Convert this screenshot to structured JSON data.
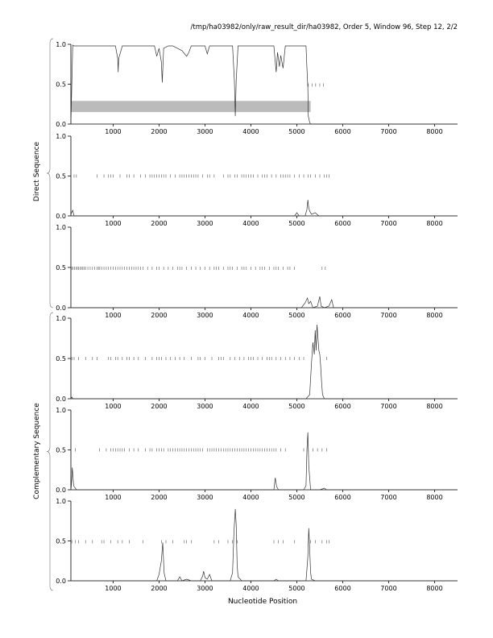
{
  "header": "/tmp/ha03982/only/raw_result_dir/ha03982, Order 5, Window 96, Step 12, 2/2",
  "xlabel": "Nucleotide Position",
  "group_labels": [
    "Direct Sequence",
    "Complementary Sequence"
  ],
  "colors": {
    "trace": "#333333",
    "tick": "#555555",
    "band": "#bbbbbb",
    "axis": "#000000"
  },
  "chart_data": [
    {
      "type": "line",
      "panel": 1,
      "xlim": [
        80,
        8500
      ],
      "ylim": [
        0,
        1
      ],
      "x_ticks": [
        1000,
        2000,
        3000,
        4000,
        5000,
        6000,
        7000,
        8000
      ],
      "y_ticks": [
        "0.0",
        "0.5",
        "1.0"
      ],
      "band": {
        "x_start": 80,
        "x_end": 5300,
        "y_low": 0.15,
        "y_high": 0.29
      },
      "series": [
        {
          "x": [
            80,
            120,
            140,
            200,
            1050,
            1100,
            1110,
            1120,
            1200,
            1900,
            1950,
            2000,
            2050,
            2070,
            2100,
            2200,
            2300,
            2500,
            2600,
            2650,
            2700,
            3000,
            3050,
            3100,
            3600,
            3640,
            3660,
            3680,
            3720,
            3800,
            4500,
            4550,
            4580,
            4620,
            4650,
            4700,
            4750,
            5150,
            5200,
            5220,
            5240,
            5250,
            5280,
            5300,
            5500,
            8500
          ],
          "y": [
            0.0,
            0.99,
            0.98,
            0.98,
            0.98,
            0.82,
            0.65,
            0.82,
            0.98,
            0.98,
            0.85,
            0.95,
            0.78,
            0.52,
            0.95,
            0.98,
            0.98,
            0.92,
            0.85,
            0.9,
            0.98,
            0.98,
            0.88,
            0.98,
            0.98,
            0.55,
            0.1,
            0.55,
            0.98,
            0.98,
            0.98,
            0.65,
            0.9,
            0.72,
            0.86,
            0.7,
            0.98,
            0.98,
            0.98,
            0.7,
            0.45,
            0.1,
            0.02,
            0.0,
            0.0,
            0.0
          ]
        }
      ],
      "tick_marks": {
        "y": 0.49,
        "x": [
          5250,
          5330,
          5410,
          5500,
          5580
        ]
      }
    },
    {
      "type": "line",
      "panel": 2,
      "xlim": [
        80,
        8500
      ],
      "ylim": [
        0,
        1
      ],
      "x_ticks": [
        1000,
        2000,
        3000,
        4000,
        5000,
        6000,
        7000,
        8000
      ],
      "y_ticks": [
        "0.0",
        "0.5",
        "1.0"
      ],
      "series": [
        {
          "x": [
            80,
            120,
            150,
            200,
            4950,
            5000,
            5050,
            5180,
            5220,
            5240,
            5260,
            5280,
            5320,
            5400,
            5480,
            5600,
            8500
          ],
          "y": [
            0.02,
            0.07,
            0.0,
            0.0,
            0.0,
            0.04,
            0.0,
            0.0,
            0.08,
            0.2,
            0.1,
            0.06,
            0.02,
            0.04,
            0.0,
            0.0,
            0.0
          ]
        }
      ],
      "tick_marks": {
        "y": 0.5,
        "x": [
          150,
          200,
          650,
          800,
          900,
          950,
          1000,
          1150,
          1300,
          1350,
          1450,
          1600,
          1700,
          1800,
          1850,
          1900,
          1950,
          2000,
          2050,
          2100,
          2150,
          2250,
          2350,
          2450,
          2500,
          2550,
          2600,
          2650,
          2700,
          2750,
          2800,
          2850,
          2950,
          3050,
          3100,
          3200,
          3400,
          3500,
          3550,
          3650,
          3700,
          3800,
          3850,
          3900,
          3950,
          4000,
          4050,
          4150,
          4250,
          4300,
          4350,
          4450,
          4550,
          4650,
          4700,
          4750,
          4800,
          4850,
          4950,
          5050,
          5150,
          5250,
          5300,
          5400,
          5500,
          5600,
          5650,
          5700
        ]
      }
    },
    {
      "type": "line",
      "panel": 3,
      "xlim": [
        80,
        8500
      ],
      "ylim": [
        0,
        1
      ],
      "x_ticks": [
        1000,
        2000,
        3000,
        4000,
        5000,
        6000,
        7000,
        8000
      ],
      "y_ticks": [
        "0.0",
        "0.5",
        "1.0"
      ],
      "series": [
        {
          "x": [
            80,
            5100,
            5180,
            5230,
            5260,
            5300,
            5350,
            5450,
            5500,
            5530,
            5600,
            5700,
            5760,
            5800,
            8500
          ],
          "y": [
            0.0,
            0.0,
            0.06,
            0.12,
            0.05,
            0.08,
            0.0,
            0.02,
            0.14,
            0.02,
            0.0,
            0.02,
            0.1,
            0.0,
            0.0
          ]
        }
      ],
      "tick_marks": {
        "y": 0.49,
        "x": [
          100,
          130,
          160,
          190,
          220,
          250,
          280,
          310,
          340,
          370,
          400,
          450,
          500,
          550,
          600,
          650,
          680,
          710,
          750,
          800,
          850,
          900,
          950,
          1000,
          1050,
          1100,
          1150,
          1200,
          1250,
          1300,
          1350,
          1400,
          1450,
          1500,
          1550,
          1600,
          1650,
          1750,
          1850,
          1950,
          2000,
          2100,
          2200,
          2300,
          2400,
          2450,
          2500,
          2600,
          2700,
          2800,
          2900,
          3000,
          3100,
          3200,
          3250,
          3300,
          3400,
          3500,
          3550,
          3600,
          3700,
          3800,
          3850,
          3900,
          4000,
          4100,
          4200,
          4250,
          4300,
          4400,
          4500,
          4550,
          4600,
          4700,
          4800,
          4850,
          4950,
          5550,
          5620
        ]
      }
    },
    {
      "type": "line",
      "panel": 4,
      "xlim": [
        80,
        8500
      ],
      "ylim": [
        0,
        1
      ],
      "x_ticks": [
        1000,
        2000,
        3000,
        4000,
        5000,
        6000,
        7000,
        8000
      ],
      "y_ticks": [
        "0.0",
        "0.5",
        "1.0"
      ],
      "series": [
        {
          "x": [
            80,
            100,
            130,
            160,
            5200,
            5280,
            5320,
            5350,
            5380,
            5400,
            5420,
            5440,
            5460,
            5480,
            5500,
            5520,
            5540,
            5560,
            5600,
            8500
          ],
          "y": [
            0.0,
            0.02,
            0.0,
            0.0,
            0.0,
            0.05,
            0.45,
            0.7,
            0.55,
            0.85,
            0.6,
            0.92,
            0.75,
            0.6,
            0.55,
            0.4,
            0.2,
            0.05,
            0.0,
            0.0
          ]
        }
      ],
      "tick_marks": {
        "y": 0.5,
        "x": [
          100,
          150,
          250,
          400,
          550,
          650,
          900,
          950,
          1050,
          1100,
          1200,
          1300,
          1350,
          1450,
          1550,
          1700,
          1850,
          1950,
          2000,
          2050,
          2150,
          2250,
          2350,
          2450,
          2550,
          2700,
          2850,
          2900,
          3000,
          3150,
          3300,
          3350,
          3400,
          3550,
          3650,
          3750,
          3850,
          3950,
          4000,
          4050,
          4150,
          4250,
          4350,
          4400,
          4450,
          4550,
          4650,
          4750,
          4850,
          4950,
          5050,
          5150,
          5650
        ]
      }
    },
    {
      "type": "line",
      "panel": 5,
      "xlim": [
        80,
        8500
      ],
      "ylim": [
        0,
        1
      ],
      "x_ticks": [
        1000,
        2000,
        3000,
        4000,
        5000,
        6000,
        7000,
        8000
      ],
      "y_ticks": [
        "0.0",
        "0.5",
        "1.0"
      ],
      "series": [
        {
          "x": [
            80,
            90,
            110,
            140,
            200,
            4500,
            4530,
            4560,
            4600,
            5150,
            5200,
            5220,
            5240,
            5260,
            5300,
            5500,
            5600,
            5650,
            8500
          ],
          "y": [
            0.0,
            0.05,
            0.28,
            0.05,
            0.0,
            0.0,
            0.15,
            0.04,
            0.0,
            0.0,
            0.05,
            0.5,
            0.72,
            0.3,
            0.0,
            0.0,
            0.02,
            0.0,
            0.0
          ]
        }
      ],
      "tick_marks": {
        "y": 0.5,
        "x": [
          180,
          700,
          850,
          950,
          1000,
          1050,
          1100,
          1150,
          1200,
          1250,
          1350,
          1450,
          1550,
          1700,
          1800,
          1850,
          1950,
          2000,
          2050,
          2100,
          2200,
          2250,
          2300,
          2350,
          2400,
          2450,
          2500,
          2550,
          2600,
          2650,
          2700,
          2750,
          2800,
          2850,
          2900,
          2950,
          3050,
          3100,
          3150,
          3200,
          3250,
          3300,
          3350,
          3400,
          3450,
          3500,
          3550,
          3600,
          3650,
          3700,
          3750,
          3800,
          3850,
          3900,
          3950,
          4000,
          4050,
          4100,
          4150,
          4200,
          4250,
          4300,
          4350,
          4400,
          4450,
          4500,
          4550,
          4650,
          4750,
          5150,
          5250,
          5350,
          5450,
          5550,
          5650
        ]
      }
    },
    {
      "type": "line",
      "panel": 6,
      "xlim": [
        80,
        8500
      ],
      "ylim": [
        0,
        1
      ],
      "x_ticks": [
        1000,
        2000,
        3000,
        4000,
        5000,
        6000,
        7000,
        8000
      ],
      "y_ticks": [
        "0.0",
        "0.5",
        "1.0"
      ],
      "series": [
        {
          "x": [
            80,
            1950,
            2000,
            2050,
            2080,
            2110,
            2150,
            2400,
            2450,
            2500,
            2600,
            2700,
            2900,
            2950,
            2970,
            3000,
            3050,
            3100,
            3150,
            3550,
            3600,
            3630,
            3660,
            3680,
            3700,
            3720,
            3800,
            4500,
            4550,
            4600,
            5200,
            5240,
            5260,
            5280,
            5300,
            5320,
            5400,
            8500
          ],
          "y": [
            0.0,
            0.0,
            0.08,
            0.25,
            0.48,
            0.1,
            0.0,
            0.0,
            0.05,
            0.0,
            0.02,
            0.0,
            0.0,
            0.06,
            0.12,
            0.04,
            0.02,
            0.08,
            0.0,
            0.0,
            0.1,
            0.6,
            0.9,
            0.7,
            0.2,
            0.05,
            0.0,
            0.0,
            0.02,
            0.0,
            0.0,
            0.3,
            0.66,
            0.4,
            0.1,
            0.02,
            0.0,
            0.0
          ]
        }
      ],
      "tick_marks": {
        "y": 0.49,
        "x": [
          100,
          180,
          250,
          400,
          550,
          750,
          800,
          950,
          1100,
          1200,
          1350,
          1650,
          2050,
          2150,
          2300,
          2550,
          2600,
          2700,
          3200,
          3300,
          3500,
          3600,
          3700,
          4500,
          4600,
          4700,
          4950,
          5300,
          5400,
          5550,
          5650,
          5700
        ]
      }
    }
  ]
}
